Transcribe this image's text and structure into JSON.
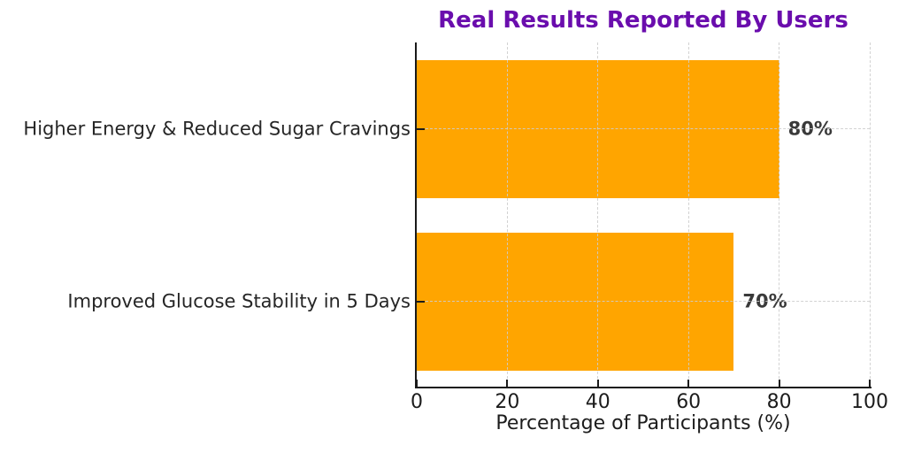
{
  "chart_data": {
    "type": "bar",
    "orientation": "horizontal",
    "title": "Real Results Reported By Users",
    "categories": [
      "Higher Energy & Reduced Sugar Cravings",
      "Improved Glucose Stability in 5 Days"
    ],
    "values": [
      80,
      70
    ],
    "value_labels": [
      "80%",
      "70%"
    ],
    "xlabel": "Percentage of Participants (%)",
    "xlim": [
      0,
      100
    ],
    "xtick_values": [
      0,
      20,
      40,
      60,
      80,
      100
    ],
    "xtick_labels": [
      "0",
      "20",
      "40",
      "60",
      "80",
      "100"
    ],
    "grid": "dashed",
    "grid_lines": "vertical-at-xticks-and-horizontal-at-bar-centers",
    "legend": "none",
    "bar_fraction_of_slot": 0.8,
    "colors": {
      "bar": "#FFA500",
      "title": "#6A0DAD",
      "grid": "#cdcdcd",
      "spine": "#1a1a1a",
      "tick_label": "#1c1c1c",
      "category_label": "#262626",
      "value_label": "#3a3a3a",
      "background": "#ffffff"
    }
  }
}
